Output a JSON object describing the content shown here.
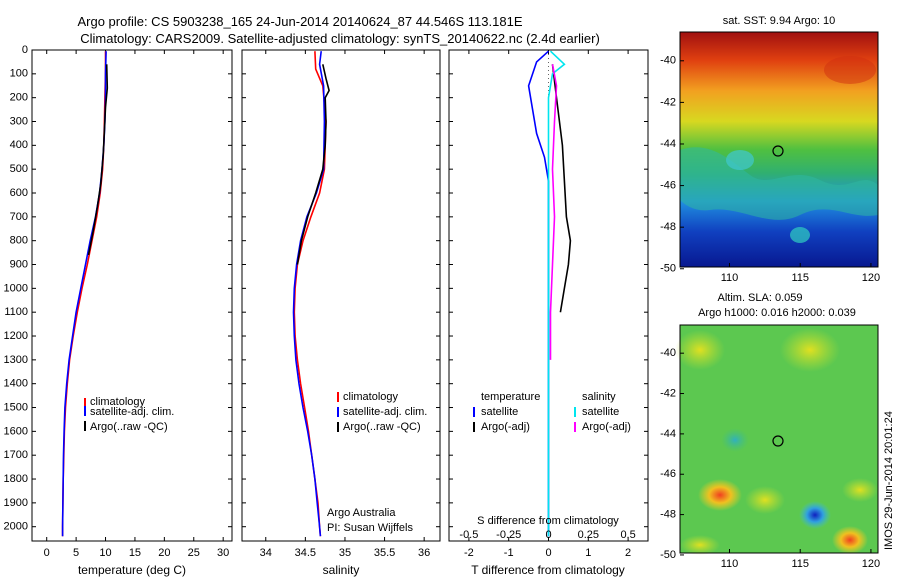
{
  "title": {
    "line1": "Argo profile: CS 5903238_165 24-Jun-2014 20140624_87 44.546S 113.181E",
    "line2": "Climatology: CARS2009. Satellite-adjusted climatology: synTS_20140622.nc (2.4d earlier)"
  },
  "depth_ticks": [
    "0",
    "100",
    "200",
    "300",
    "400",
    "500",
    "600",
    "700",
    "800",
    "900",
    "1000",
    "1100",
    "1200",
    "1300",
    "1400",
    "1500",
    "1600",
    "1700",
    "1800",
    "1900",
    "2000"
  ],
  "chart_data": [
    {
      "type": "line",
      "xlabel": "temperature (deg C)",
      "xticks": [
        "0",
        "5",
        "10",
        "15",
        "20",
        "25",
        "30"
      ],
      "xlim": [
        -2.5,
        31.5
      ],
      "ylim": [
        0,
        2060
      ],
      "legend": [
        "climatology",
        "satellite-adj. clim.",
        "Argo(..raw -QC)"
      ],
      "series": [
        {
          "name": "climatology",
          "color": "#ff0000",
          "points": [
            [
              10,
              5
            ],
            [
              10,
              100
            ],
            [
              9.9,
              200
            ],
            [
              9.8,
              300
            ],
            [
              9.7,
              400
            ],
            [
              9.5,
              500
            ],
            [
              9.1,
              600
            ],
            [
              8.5,
              700
            ],
            [
              7.7,
              800
            ],
            [
              6.9,
              900
            ],
            [
              6.0,
              1000
            ],
            [
              5.2,
              1100
            ],
            [
              4.5,
              1200
            ],
            [
              3.9,
              1300
            ],
            [
              3.5,
              1400
            ],
            [
              3.2,
              1500
            ],
            [
              3.0,
              1600
            ],
            [
              2.9,
              1700
            ],
            [
              2.8,
              1800
            ],
            [
              2.75,
              1900
            ],
            [
              2.7,
              2000
            ],
            [
              2.7,
              2040
            ]
          ]
        },
        {
          "name": "satellite-adj. clim.",
          "color": "#0000ff",
          "points": [
            [
              10.1,
              5
            ],
            [
              10.0,
              100
            ],
            [
              10.0,
              200
            ],
            [
              9.9,
              300
            ],
            [
              9.7,
              400
            ],
            [
              9.4,
              500
            ],
            [
              9.0,
              600
            ],
            [
              8.3,
              700
            ],
            [
              7.4,
              800
            ],
            [
              6.6,
              900
            ],
            [
              5.8,
              1000
            ],
            [
              5.0,
              1100
            ],
            [
              4.4,
              1200
            ],
            [
              3.8,
              1300
            ],
            [
              3.4,
              1400
            ],
            [
              3.1,
              1500
            ],
            [
              2.95,
              1600
            ],
            [
              2.85,
              1700
            ],
            [
              2.8,
              1800
            ],
            [
              2.75,
              1900
            ],
            [
              2.7,
              2000
            ],
            [
              2.7,
              2040
            ]
          ]
        },
        {
          "name": "Argo(..raw -QC)",
          "color": "#000000",
          "points": [
            [
              10.2,
              60
            ],
            [
              10.3,
              160
            ],
            [
              10.0,
              240
            ],
            [
              9.8,
              340
            ],
            [
              9.6,
              440
            ],
            [
              9.2,
              560
            ],
            [
              8.6,
              660
            ],
            [
              7.9,
              760
            ],
            [
              7.1,
              860
            ]
          ]
        }
      ],
      "annotations": []
    },
    {
      "type": "line",
      "xlabel": "salinity",
      "xticks": [
        "34",
        "34.5",
        "35",
        "35.5",
        "36"
      ],
      "xlim": [
        33.7,
        36.2
      ],
      "ylim": [
        0,
        2060
      ],
      "legend": [
        "climatology",
        "satellite-adj. clim.",
        "Argo(..raw -QC)"
      ],
      "series": [
        {
          "name": "climatology",
          "color": "#ff0000",
          "points": [
            [
              34.62,
              5
            ],
            [
              34.63,
              80
            ],
            [
              34.72,
              150
            ],
            [
              34.76,
              300
            ],
            [
              34.74,
              500
            ],
            [
              34.68,
              600
            ],
            [
              34.57,
              700
            ],
            [
              34.47,
              800
            ],
            [
              34.4,
              900
            ],
            [
              34.37,
              1000
            ],
            [
              34.36,
              1100
            ],
            [
              34.37,
              1200
            ],
            [
              34.4,
              1300
            ],
            [
              34.44,
              1400
            ],
            [
              34.49,
              1500
            ],
            [
              34.54,
              1600
            ],
            [
              34.58,
              1700
            ],
            [
              34.62,
              1800
            ],
            [
              34.66,
              1900
            ],
            [
              34.68,
              2000
            ],
            [
              34.69,
              2040
            ]
          ]
        },
        {
          "name": "satellite-adj. clim.",
          "color": "#0000ff",
          "points": [
            [
              34.7,
              5
            ],
            [
              34.68,
              60
            ],
            [
              34.73,
              150
            ],
            [
              34.74,
              300
            ],
            [
              34.73,
              500
            ],
            [
              34.64,
              600
            ],
            [
              34.52,
              700
            ],
            [
              34.44,
              800
            ],
            [
              34.39,
              900
            ],
            [
              34.36,
              1000
            ],
            [
              34.35,
              1100
            ],
            [
              34.36,
              1200
            ],
            [
              34.38,
              1300
            ],
            [
              34.42,
              1400
            ],
            [
              34.47,
              1500
            ],
            [
              34.53,
              1600
            ],
            [
              34.58,
              1700
            ],
            [
              34.62,
              1800
            ],
            [
              34.65,
              1900
            ],
            [
              34.68,
              2000
            ],
            [
              34.69,
              2040
            ]
          ]
        },
        {
          "name": "Argo(..raw -QC)",
          "color": "#000000",
          "points": [
            [
              34.72,
              60
            ],
            [
              34.76,
              120
            ],
            [
              34.8,
              170
            ],
            [
              34.75,
              200
            ],
            [
              34.76,
              300
            ],
            [
              34.75,
              400
            ],
            [
              34.72,
              500
            ],
            [
              34.63,
              600
            ],
            [
              34.53,
              700
            ],
            [
              34.45,
              800
            ],
            [
              34.4,
              900
            ]
          ]
        }
      ],
      "annotations": [
        "Argo Australia",
        "PI: Susan Wijffels"
      ]
    },
    {
      "type": "line",
      "xlabel": "T difference from climatology",
      "xlabel2": "S difference from climatology",
      "xticks": [
        "-2",
        "-1",
        "0",
        "1",
        "2"
      ],
      "xticks2": [
        "-0.5",
        "-0.25",
        "0",
        "0.25",
        "0.5"
      ],
      "xlim": [
        -2.5,
        2.5
      ],
      "ylim": [
        0,
        2060
      ],
      "legend_t": {
        "header": "temperature",
        "items": [
          "satellite",
          "Argo(-adj)"
        ]
      },
      "legend_s": {
        "header": "salinity",
        "items": [
          "satellite",
          "Argo(-adj)"
        ]
      },
      "series": [
        {
          "name": "satellite",
          "color": "#0000ff",
          "points": [
            [
              0,
              5
            ],
            [
              -0.3,
              50
            ],
            [
              -0.5,
              150
            ],
            [
              -0.4,
              250
            ],
            [
              -0.3,
              350
            ],
            [
              -0.1,
              450
            ],
            [
              0,
              550
            ],
            [
              0,
              700
            ],
            [
              0,
              900
            ],
            [
              0,
              1100
            ],
            [
              0,
              1400
            ],
            [
              0,
              1700
            ],
            [
              0,
              2000
            ],
            [
              0,
              2040
            ]
          ]
        },
        {
          "name": "Argo(-adj)",
          "color": "#000000",
          "points": [
            [
              0.1,
              60
            ],
            [
              0.2,
              200
            ],
            [
              0.35,
              400
            ],
            [
              0.4,
              550
            ],
            [
              0.45,
              700
            ],
            [
              0.55,
              800
            ],
            [
              0.5,
              900
            ],
            [
              0.4,
              1000
            ],
            [
              0.3,
              1100
            ]
          ]
        },
        {
          "name": "satellite",
          "color": "#00e5ee",
          "points": [
            [
              0.05,
              5
            ],
            [
              0.4,
              60
            ],
            [
              0.1,
              100
            ],
            [
              0,
              200
            ],
            [
              0,
              400
            ],
            [
              0,
              700
            ],
            [
              0,
              1000
            ],
            [
              0,
              1400
            ],
            [
              0,
              2040
            ]
          ]
        },
        {
          "name": "Argo(-adj)",
          "color": "#ff00ff",
          "points": [
            [
              0.1,
              60
            ],
            [
              0.2,
              150
            ],
            [
              0.15,
              300
            ],
            [
              0.1,
              500
            ],
            [
              0.15,
              700
            ],
            [
              0.1,
              900
            ],
            [
              0.05,
              1100
            ],
            [
              0.05,
              1300
            ]
          ]
        }
      ],
      "annotations": []
    }
  ],
  "maps": [
    {
      "title": "sat. SST: 9.94  Argo: 10",
      "yticks": [
        "-40",
        "-42",
        "-44",
        "-46",
        "-48",
        "-50"
      ],
      "xticks": [
        "110",
        "115",
        "120"
      ]
    },
    {
      "title1": "Altim. SLA: 0.059",
      "title2": "Argo h1000: 0.016 h2000: 0.039",
      "yticks": [
        "-40",
        "-42",
        "-44",
        "-46",
        "-48",
        "-50"
      ],
      "xticks": [
        "110",
        "115",
        "120"
      ]
    }
  ],
  "stamp": "IMOS 29-Jun-2014 20:01:24"
}
